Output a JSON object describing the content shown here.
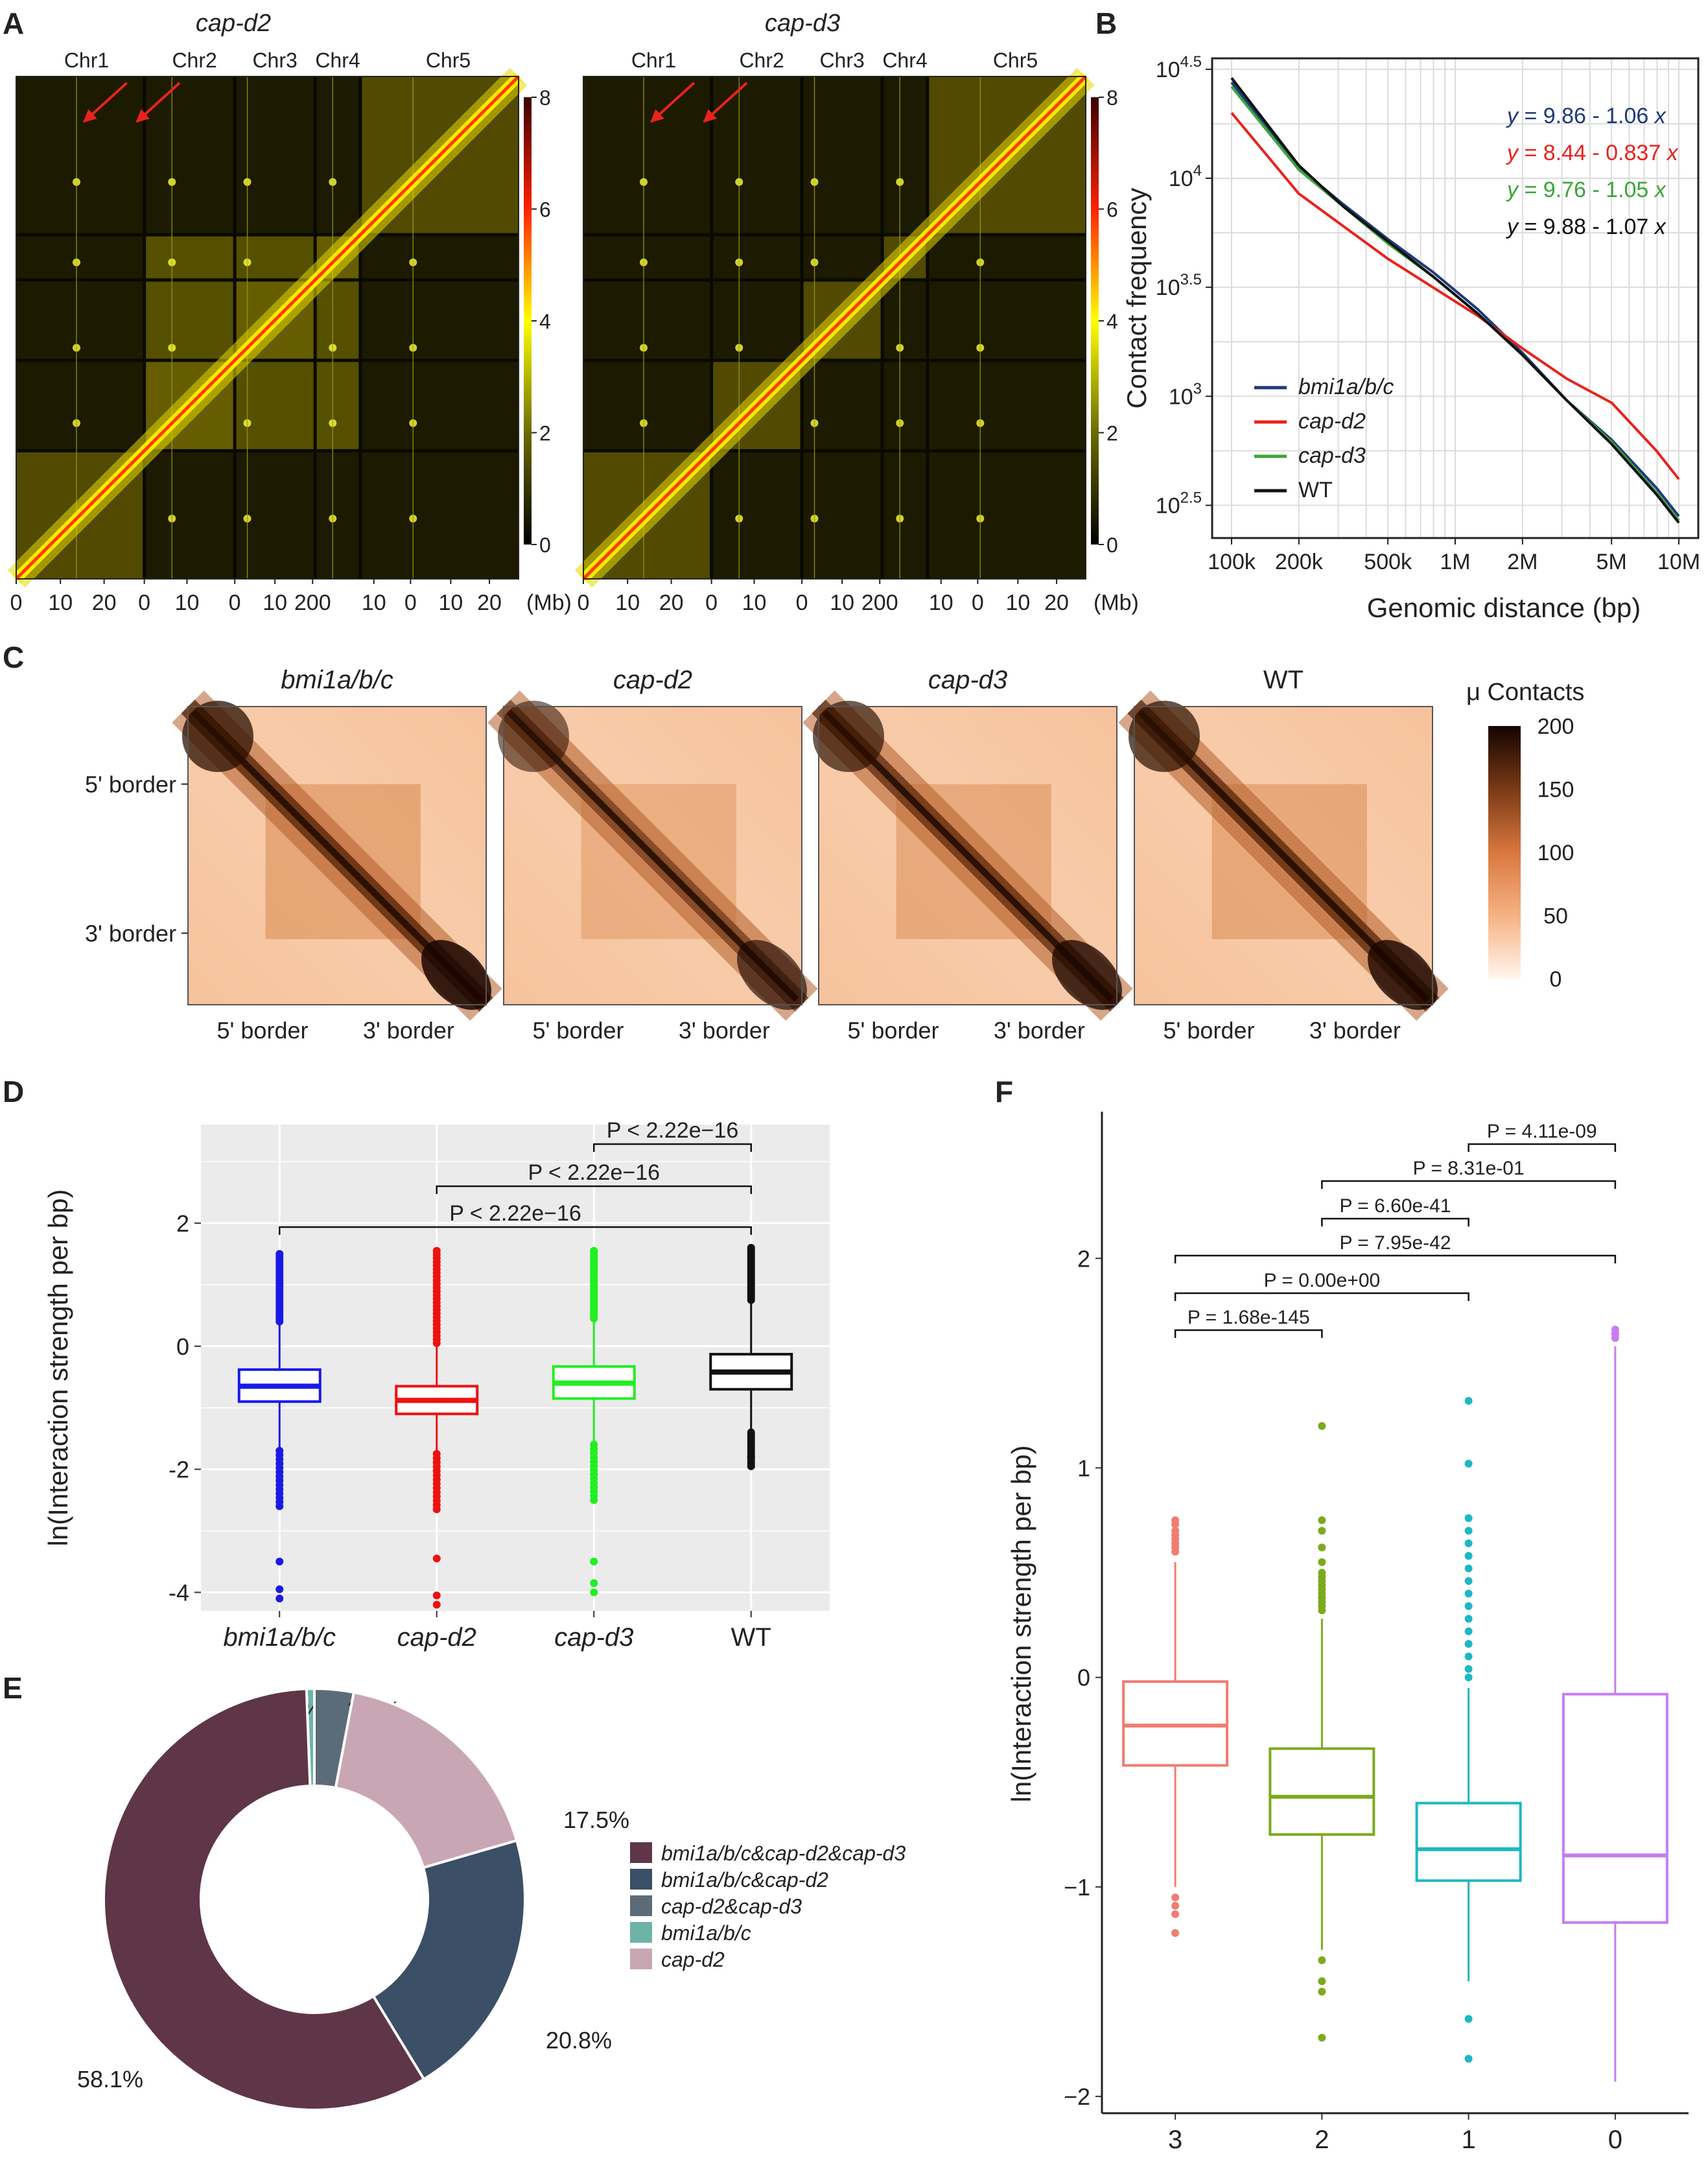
{
  "panel_labels": [
    "A",
    "B",
    "C",
    "D",
    "E",
    "F"
  ],
  "chart_data": [
    {
      "panel": "A",
      "type": "heatmap",
      "maps": [
        {
          "title": "cap-d2",
          "highlight": "interchromosomal contacts (red arrows) and Chr2-Chr4 compartment"
        },
        {
          "title": "cap-d3",
          "highlight": "interchromosomal contacts (red arrows)"
        }
      ],
      "chromosomes": [
        "Chr1",
        "Chr2",
        "Chr3",
        "Chr4",
        "Chr5"
      ],
      "x_ticks": [
        "0",
        "10",
        "20",
        "0",
        "10",
        "0",
        "10",
        "200",
        "10",
        "0",
        "10",
        "20"
      ],
      "x_unit": "(Mb)",
      "colorbar_ticks": [
        "8",
        "6",
        "4",
        "2",
        "0"
      ],
      "colorbar_range": [
        0,
        8
      ]
    },
    {
      "panel": "B",
      "type": "line",
      "ylabel": "Contact frequency",
      "xlabel": "Genomic distance (bp)",
      "x_ticks": [
        "100k",
        "200k",
        "500k",
        "1M",
        "2M",
        "5M",
        "10M"
      ],
      "y_ticks": [
        {
          "base": "10",
          "exp": "2.5"
        },
        {
          "base": "10",
          "exp": "3"
        },
        {
          "base": "10",
          "exp": "3.5"
        },
        {
          "base": "10",
          "exp": "4"
        },
        {
          "base": "10",
          "exp": "4.5"
        }
      ],
      "xlim_log10": [
        5.0,
        7.0
      ],
      "ylim_log10": [
        2.35,
        4.55
      ],
      "equations": [
        {
          "text": "y = 9.86 - 1.06 x",
          "color": "#1f3a7a"
        },
        {
          "text": "y = 8.44 - 0.837 x",
          "color": "#e8231d"
        },
        {
          "text": "y = 9.76 - 1.05 x",
          "color": "#3aa63a"
        },
        {
          "text": "y = 9.88 - 1.07 x",
          "color": "#111111"
        }
      ],
      "series": [
        {
          "name": "bmi1a/b/c",
          "color": "#1f3a7a",
          "x_log10": [
            5.0,
            5.3,
            5.5,
            5.7,
            5.9,
            6.1,
            6.3,
            6.5,
            6.7,
            6.9,
            7.0
          ],
          "y_log10": [
            4.44,
            4.05,
            3.88,
            3.72,
            3.57,
            3.4,
            3.2,
            2.98,
            2.8,
            2.58,
            2.45
          ]
        },
        {
          "name": "cap-d2",
          "color": "#e8231d",
          "x_log10": [
            5.0,
            5.3,
            5.5,
            5.7,
            5.9,
            6.1,
            6.3,
            6.5,
            6.7,
            6.9,
            7.0
          ],
          "y_log10": [
            4.3,
            3.93,
            3.78,
            3.63,
            3.5,
            3.37,
            3.22,
            3.08,
            2.97,
            2.75,
            2.62
          ]
        },
        {
          "name": "cap-d3",
          "color": "#3aa63a",
          "x_log10": [
            5.0,
            5.3,
            5.5,
            5.7,
            5.9,
            6.1,
            6.3,
            6.5,
            6.7,
            6.9,
            7.0
          ],
          "y_log10": [
            4.42,
            4.04,
            3.87,
            3.7,
            3.55,
            3.38,
            3.19,
            2.98,
            2.79,
            2.56,
            2.43
          ]
        },
        {
          "name": "WT",
          "color": "#111111",
          "x_log10": [
            5.0,
            5.3,
            5.5,
            5.7,
            5.9,
            6.1,
            6.3,
            6.5,
            6.7,
            6.9,
            7.0
          ],
          "y_log10": [
            4.46,
            4.06,
            3.87,
            3.71,
            3.55,
            3.38,
            3.19,
            2.98,
            2.78,
            2.55,
            2.42
          ]
        }
      ],
      "legend": [
        "bmi1a/b/c",
        "cap-d2",
        "cap-d3",
        "WT"
      ]
    },
    {
      "panel": "C",
      "type": "heatmap",
      "maps": [
        {
          "title": "bmi1a/b/c"
        },
        {
          "title": "cap-d2"
        },
        {
          "title": "cap-d3"
        },
        {
          "title": "WT"
        }
      ],
      "y_labels": [
        "5' border",
        "3' border"
      ],
      "x_labels": [
        "5' border",
        "3' border"
      ],
      "colorbar_title": "μ Contacts",
      "colorbar_ticks": [
        "200",
        "150",
        "100",
        "50",
        "0"
      ],
      "colorbar_range": [
        0,
        200
      ]
    },
    {
      "panel": "D",
      "type": "box",
      "ylabel": "ln(Interaction strength per bp)",
      "categories": [
        "bmi1a/b/c",
        "cap-d2",
        "cap-d3",
        "WT"
      ],
      "colors": [
        "#1a1ae6",
        "#ee1111",
        "#22ee22",
        "#111111"
      ],
      "ylim": [
        -4.3,
        3.6
      ],
      "y_ticks": [
        "2",
        "0",
        "-2",
        "-4"
      ],
      "boxes": [
        {
          "q1": -0.9,
          "median": -0.65,
          "q3": -0.38,
          "wlo": -1.7,
          "whi": 0.4,
          "out_min": -4.1,
          "out_max": 1.5
        },
        {
          "q1": -1.1,
          "median": -0.88,
          "q3": -0.65,
          "wlo": -1.75,
          "whi": 0.05,
          "out_min": -4.2,
          "out_max": 1.55
        },
        {
          "q1": -0.85,
          "median": -0.6,
          "q3": -0.33,
          "wlo": -1.6,
          "whi": 0.45,
          "out_min": -4.0,
          "out_max": 1.55
        },
        {
          "q1": -0.7,
          "median": -0.42,
          "q3": -0.13,
          "wlo": -1.4,
          "whi": 0.75,
          "out_min": -1.95,
          "out_max": 1.6
        }
      ],
      "comparisons": [
        {
          "a": 2,
          "b": 3,
          "label": "P < 2.22e−16"
        },
        {
          "a": 1,
          "b": 3,
          "label": "P < 2.22e−16"
        },
        {
          "a": 0,
          "b": 3,
          "label": "P < 2.22e−16"
        }
      ]
    },
    {
      "panel": "E",
      "type": "pie",
      "style": "donut",
      "slices": [
        {
          "label": "bmi1a/b/c&cap-d2&cap-d3",
          "value": 58.1,
          "color": "#5e3648",
          "pct": "58.1%"
        },
        {
          "label": "bmi1a/b/c&cap-d2",
          "value": 20.8,
          "color": "#3b4f66",
          "pct": "20.8%"
        },
        {
          "label": "cap-d2",
          "value": 17.5,
          "color": "#c9a6b3",
          "pct": "17.5%"
        },
        {
          "label": "cap-d2&cap-d3",
          "value": 3.0,
          "color": "#5c6b78",
          "pct": "3.0%"
        },
        {
          "label": "bmi1a/b/c",
          "value": 0.6,
          "color": "#6db3a8",
          "pct": "0.6%"
        }
      ],
      "legend_order": [
        "bmi1a/b/c&cap-d2&cap-d3",
        "bmi1a/b/c&cap-d2",
        "cap-d2&cap-d3",
        "bmi1a/b/c",
        "cap-d2"
      ]
    },
    {
      "panel": "F",
      "type": "box",
      "ylabel": "ln(Interaction strength per bp)",
      "categories": [
        "3",
        "2",
        "1",
        "0"
      ],
      "colors": [
        "#f07c72",
        "#7caa1e",
        "#1db8c4",
        "#c77cf0"
      ],
      "ylim": [
        -2.08,
        2.7
      ],
      "y_ticks": [
        "2",
        "1",
        "0",
        "−1",
        "−2"
      ],
      "boxes": [
        {
          "q1": -0.42,
          "median": -0.23,
          "q3": -0.02,
          "wlo": -1.0,
          "whi": 0.55,
          "outliers": [
            0.75,
            0.73,
            0.7,
            0.68,
            0.66,
            0.64,
            0.62,
            0.6,
            -1.05,
            -1.09,
            -1.13,
            -1.22
          ]
        },
        {
          "q1": -0.75,
          "median": -0.57,
          "q3": -0.34,
          "wlo": -1.3,
          "whi": 0.28,
          "outliers": [
            1.2,
            0.75,
            0.7,
            0.62,
            0.55,
            0.5,
            0.48,
            0.46,
            0.44,
            0.42,
            0.4,
            0.38,
            0.36,
            0.34,
            0.32,
            -1.35,
            -1.45,
            -1.5,
            -1.72
          ]
        },
        {
          "q1": -0.97,
          "median": -0.82,
          "q3": -0.6,
          "wlo": -1.45,
          "whi": -0.05,
          "outliers": [
            1.32,
            1.02,
            0.76,
            0.7,
            0.64,
            0.58,
            0.52,
            0.46,
            0.4,
            0.34,
            0.28,
            0.22,
            0.16,
            0.1,
            0.04,
            0.0,
            -1.63,
            -1.82
          ]
        },
        {
          "q1": -1.17,
          "median": -0.85,
          "q3": -0.08,
          "wlo": -1.93,
          "whi": 1.58,
          "outliers": [
            1.66,
            1.64,
            1.62
          ]
        }
      ],
      "comparisons": [
        {
          "a": 2,
          "b": 3,
          "label": "P = 4.11e-09"
        },
        {
          "a": 1,
          "b": 3,
          "label": "P = 8.31e-01"
        },
        {
          "a": 1,
          "b": 2,
          "label": "P = 6.60e-41"
        },
        {
          "a": 0,
          "b": 3,
          "label": "P = 7.95e-42"
        },
        {
          "a": 0,
          "b": 2,
          "label": "P = 0.00e+00"
        },
        {
          "a": 0,
          "b": 1,
          "label": "P = 1.68e-145"
        }
      ]
    }
  ]
}
